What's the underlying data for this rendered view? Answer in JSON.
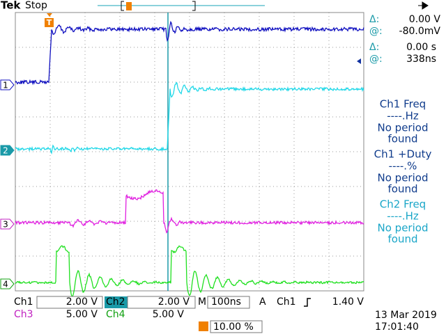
{
  "header": {
    "brand": "Tek",
    "status": "Stop"
  },
  "cursor": {
    "delta_v_label": "Δ:",
    "delta_v": "0.00 V",
    "at_v_label": "@:",
    "at_v": "-80.0mV",
    "delta_t_label": "Δ:",
    "delta_t": "0.00 s",
    "at_t_label": "@:",
    "at_t": "338ns"
  },
  "measurements": [
    {
      "title": "Ch1 Freq",
      "value": "----.Hz",
      "status": [
        "No period",
        "found"
      ]
    },
    {
      "title": "Ch1 +Duty",
      "value": "----.%",
      "status": [
        "No period",
        "found"
      ]
    },
    {
      "title": "Ch2 Freq",
      "value": "----.Hz",
      "status": [
        "No period",
        "found"
      ]
    }
  ],
  "channel_markers": [
    "1",
    "2",
    "3",
    "4"
  ],
  "trigger_marker": "T",
  "settings": {
    "ch1": {
      "label": "Ch1",
      "value": "2.00 V"
    },
    "ch2": {
      "label": "Ch2",
      "value": "2.00 V"
    },
    "ch3": {
      "label": "Ch3",
      "value": "5.00 V"
    },
    "ch4": {
      "label": "Ch4",
      "value": "5.00 V"
    },
    "timebase": {
      "label": "M",
      "value": "100ns"
    },
    "trigger": {
      "label": "A",
      "source": "Ch1",
      "level": "1.40 V"
    },
    "trigger_position": "10.00 %"
  },
  "date": "13 Mar 2019",
  "time": "17:01:40"
}
